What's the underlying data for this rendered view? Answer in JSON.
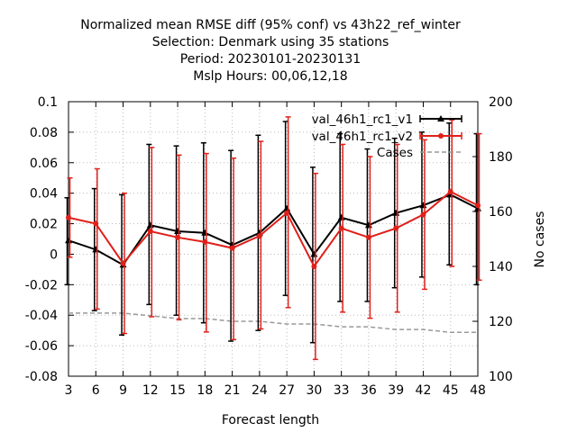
{
  "chart_data": {
    "type": "line",
    "title_lines": [
      "Normalized mean RMSE diff (95% conf) vs 43h22_ref_winter",
      "Selection: Denmark using    35 stations",
      "Period: 20230101-20230131",
      "Mslp   Hours:  00,06,12,18"
    ],
    "xlabel": "Forecast length",
    "ylabel": "",
    "y2label": "No cases",
    "x": [
      3,
      6,
      9,
      12,
      15,
      18,
      21,
      24,
      27,
      30,
      33,
      36,
      39,
      42,
      45,
      48
    ],
    "x_ticks": [
      "3",
      "6",
      "9",
      "12",
      "15",
      "18",
      "21",
      "24",
      "27",
      "30",
      "33",
      "36",
      "39",
      "42",
      "45",
      "48"
    ],
    "y_ticks": [
      "0.1",
      "0.08",
      "0.06",
      "0.04",
      "0.02",
      "0",
      "-0.02",
      "-0.04",
      "-0.06",
      "-0.08"
    ],
    "y2_ticks": [
      "200",
      "180",
      "160",
      "140",
      "120",
      "100"
    ],
    "ylim": [
      -0.08,
      0.1
    ],
    "y2lim": [
      100,
      200
    ],
    "grid": true,
    "legend_position": "top-right",
    "series": [
      {
        "name": "val_46h1_rc1_v1",
        "color": "#000000",
        "marker": "triangle",
        "values": [
          0.009,
          0.003,
          -0.007,
          0.019,
          0.015,
          0.014,
          0.006,
          0.014,
          0.03,
          0.0,
          0.024,
          0.019,
          0.027,
          0.032,
          0.039,
          0.03
        ],
        "err_low": [
          -0.02,
          -0.037,
          -0.053,
          -0.033,
          -0.04,
          -0.045,
          -0.057,
          -0.05,
          -0.027,
          -0.058,
          -0.031,
          -0.031,
          -0.022,
          -0.015,
          -0.007,
          -0.02
        ],
        "err_high": [
          0.037,
          0.043,
          0.039,
          0.072,
          0.071,
          0.073,
          0.068,
          0.078,
          0.087,
          0.057,
          0.079,
          0.069,
          0.076,
          0.08,
          0.086,
          0.079
        ]
      },
      {
        "name": "val_46h1_rc1_v2",
        "color": "#e0201a",
        "marker": "circle",
        "values": [
          0.024,
          0.02,
          -0.006,
          0.015,
          0.011,
          0.008,
          0.004,
          0.012,
          0.027,
          -0.008,
          0.017,
          0.011,
          0.017,
          0.026,
          0.041,
          0.032
        ],
        "err_low": [
          -0.002,
          -0.036,
          -0.052,
          -0.041,
          -0.043,
          -0.051,
          -0.056,
          -0.049,
          -0.035,
          -0.069,
          -0.038,
          -0.042,
          -0.038,
          -0.023,
          -0.008,
          -0.017
        ],
        "err_high": [
          0.05,
          0.056,
          0.04,
          0.07,
          0.065,
          0.066,
          0.063,
          0.074,
          0.09,
          0.053,
          0.072,
          0.064,
          0.072,
          0.075,
          0.088,
          0.079
        ]
      },
      {
        "name": "Cases",
        "color": "#999999",
        "style": "dashed",
        "axis": "y2",
        "values": [
          123,
          123,
          123,
          122,
          121,
          121,
          120,
          120,
          119,
          119,
          118,
          118,
          117,
          117,
          116,
          116
        ]
      }
    ]
  }
}
